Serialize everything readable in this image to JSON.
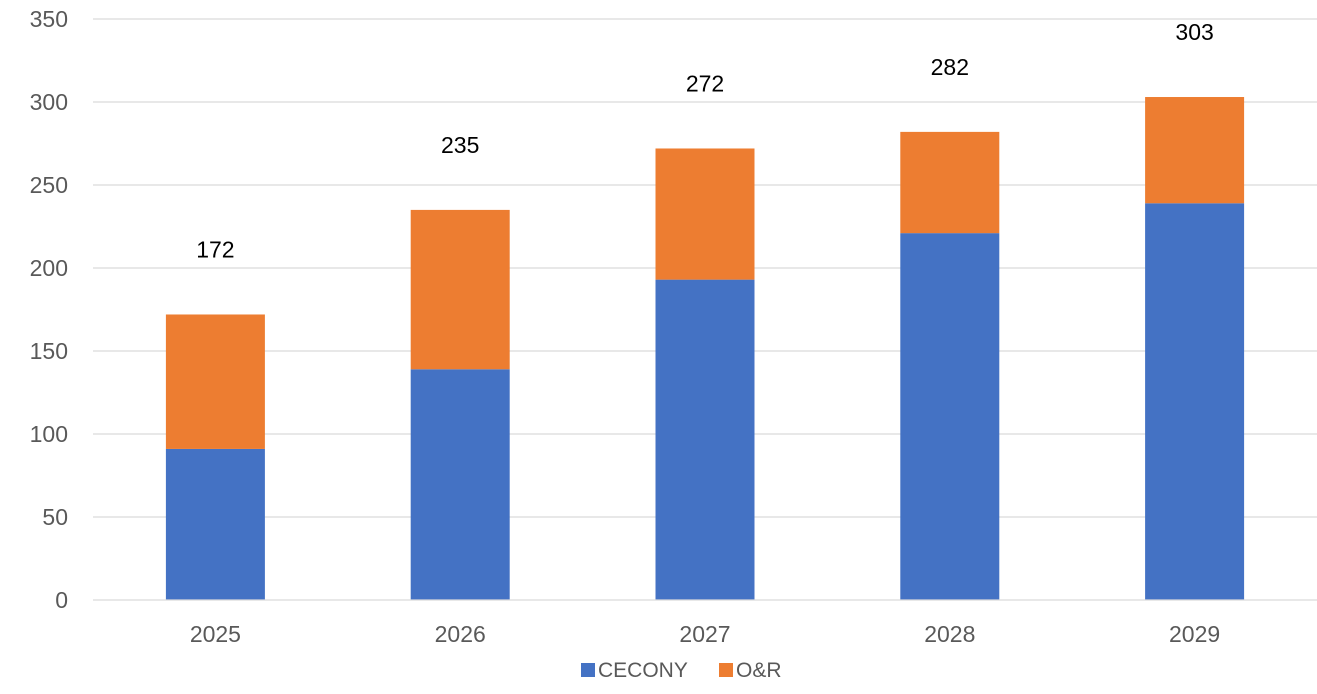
{
  "chart_data": {
    "type": "bar",
    "stacked": true,
    "categories": [
      "2025",
      "2026",
      "2027",
      "2028",
      "2029"
    ],
    "series": [
      {
        "name": "CECONY",
        "values": [
          91,
          139,
          193,
          221,
          239
        ],
        "color": "#4472C4"
      },
      {
        "name": "O&R",
        "values": [
          81,
          96,
          79,
          61,
          64
        ],
        "color": "#ED7D31"
      }
    ],
    "totals": [
      "172",
      "235",
      "272",
      "282",
      "303"
    ],
    "ylim": [
      0,
      350
    ],
    "yticks": [
      "0",
      "50",
      "100",
      "150",
      "200",
      "250",
      "300",
      "350"
    ],
    "title": "",
    "xlabel": "",
    "ylabel": "",
    "grid": true,
    "gridline_color": "#D9D9D9",
    "legend_position": "bottom-center"
  }
}
